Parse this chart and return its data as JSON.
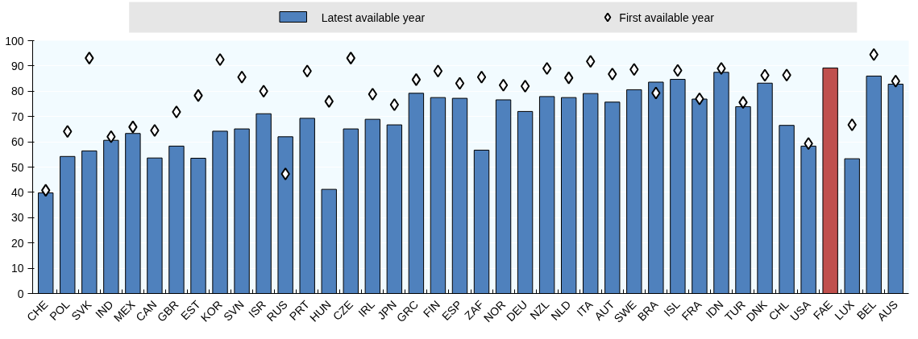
{
  "chart_data": {
    "type": "bar",
    "categories": [
      "CHE",
      "POL",
      "SVK",
      "IND",
      "MEX",
      "CAN",
      "GBR",
      "EST",
      "KOR",
      "SVN",
      "ISR",
      "RUS",
      "PRT",
      "HUN",
      "CZE",
      "IRL",
      "JPN",
      "GRC",
      "FIN",
      "ESP",
      "ZAF",
      "NOR",
      "DEU",
      "NZL",
      "NLD",
      "ITA",
      "AUT",
      "SWE",
      "BRA",
      "ISL",
      "FRA",
      "IDN",
      "TUR",
      "DNK",
      "CHL",
      "USA",
      "FAE",
      "LUX",
      "BEL",
      "AUS"
    ],
    "series": [
      {
        "name": "Latest available year",
        "color": "#4f81bd",
        "colors": [
          "#4f81bd",
          "#4f81bd",
          "#4f81bd",
          "#4f81bd",
          "#4f81bd",
          "#4f81bd",
          "#4f81bd",
          "#4f81bd",
          "#4f81bd",
          "#4f81bd",
          "#4f81bd",
          "#4f81bd",
          "#4f81bd",
          "#4f81bd",
          "#4f81bd",
          "#4f81bd",
          "#4f81bd",
          "#4f81bd",
          "#4f81bd",
          "#4f81bd",
          "#4f81bd",
          "#4f81bd",
          "#4f81bd",
          "#4f81bd",
          "#4f81bd",
          "#4f81bd",
          "#4f81bd",
          "#4f81bd",
          "#4f81bd",
          "#4f81bd",
          "#4f81bd",
          "#4f81bd",
          "#4f81bd",
          "#4f81bd",
          "#4f81bd",
          "#4f81bd",
          "#c0504d",
          "#4f81bd",
          "#4f81bd",
          "#4f81bd"
        ],
        "values": [
          39.8,
          54.2,
          56.4,
          60.6,
          63.3,
          53.6,
          58.3,
          53.5,
          64.2,
          65.1,
          71.1,
          62.0,
          69.3,
          41.2,
          65.1,
          68.9,
          66.7,
          79.2,
          77.5,
          77.2,
          56.7,
          76.6,
          72.0,
          77.9,
          77.5,
          79.1,
          75.7,
          80.6,
          83.6,
          84.7,
          76.9,
          87.5,
          73.9,
          83.2,
          66.5,
          58.3,
          89.2,
          53.3,
          86.0,
          82.8
        ]
      },
      {
        "name": "First available year",
        "type": "scatter",
        "marker": "diamond",
        "color": "#ffffff",
        "values": [
          40.8,
          64.1,
          93.1,
          62.0,
          65.9,
          64.5,
          71.8,
          78.3,
          92.5,
          85.6,
          80.0,
          47.3,
          88.0,
          76.0,
          93.1,
          78.8,
          74.7,
          84.6,
          88.0,
          83.1,
          85.6,
          82.4,
          82.0,
          89.0,
          85.3,
          91.8,
          86.8,
          88.6,
          79.3,
          88.2,
          77.0,
          89.0,
          75.6,
          86.3,
          86.4,
          59.3,
          null,
          66.7,
          94.5,
          84.0
        ]
      }
    ],
    "ylim": [
      0,
      100
    ],
    "yticks": [
      0,
      10,
      20,
      30,
      40,
      50,
      60,
      70,
      80,
      90,
      100
    ],
    "grid": "y",
    "legend": "top"
  }
}
